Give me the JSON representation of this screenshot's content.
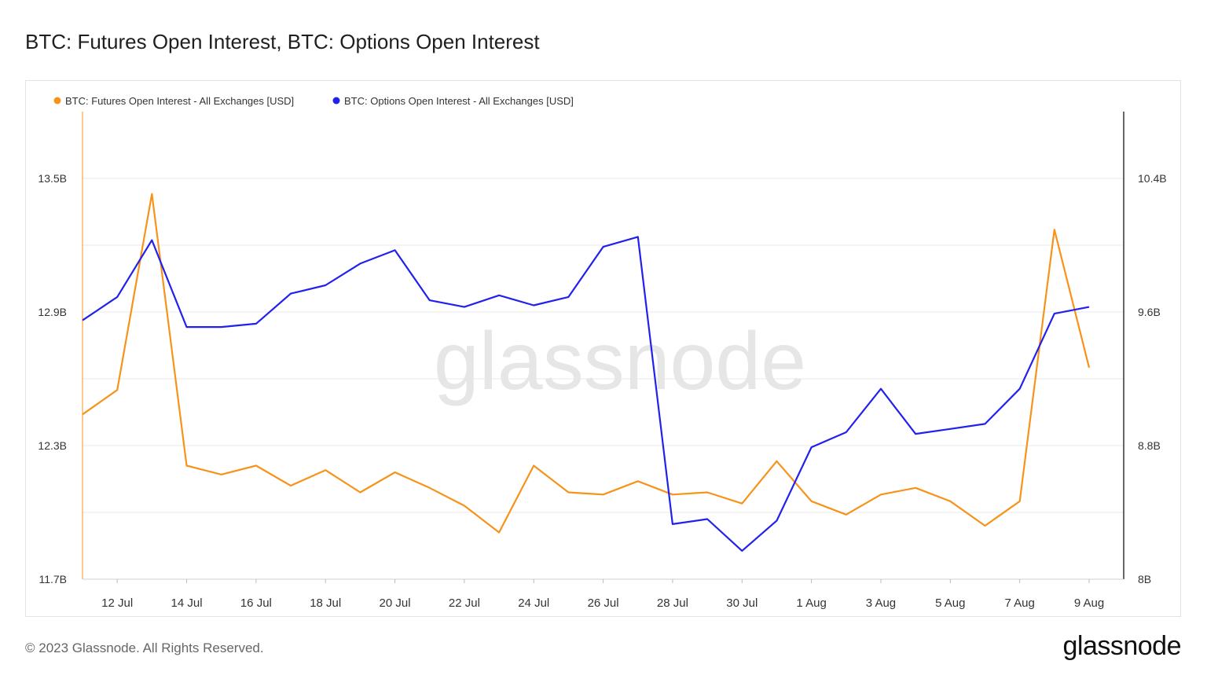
{
  "title": "BTC: Futures Open Interest, BTC: Options Open Interest",
  "footer": "© 2023 Glassnode. All Rights Reserved.",
  "brand": "glassnode",
  "watermark": "glassnode",
  "colors": {
    "futures": "#f7931a",
    "options": "#2121ee",
    "grid": "#e8e8e8",
    "axis_right": "#333333"
  },
  "chart_data": {
    "type": "line",
    "title": "BTC: Futures Open Interest, BTC: Options Open Interest",
    "x_start": "11 Jul",
    "x_end": "9 Aug",
    "x_tick_labels": [
      "12 Jul",
      "14 Jul",
      "16 Jul",
      "18 Jul",
      "20 Jul",
      "22 Jul",
      "24 Jul",
      "26 Jul",
      "28 Jul",
      "30 Jul",
      "1 Aug",
      "3 Aug",
      "5 Aug",
      "7 Aug",
      "9 Aug"
    ],
    "y_left": {
      "ticks": [
        "11.7B",
        "12.3B",
        "12.9B",
        "13.5B"
      ],
      "tick_values": [
        11.7,
        12.3,
        12.9,
        13.5
      ],
      "range": [
        11.7,
        13.8
      ],
      "unit": "B USD"
    },
    "y_right": {
      "ticks": [
        "8B",
        "8.8B",
        "9.6B",
        "10.4B"
      ],
      "tick_values": [
        8.0,
        8.8,
        9.6,
        10.4
      ],
      "range": [
        8.0,
        10.8
      ],
      "unit": "B USD"
    },
    "grid": true,
    "legend_position": "top-left",
    "series": [
      {
        "name": "BTC: Futures Open Interest - All Exchanges [USD]",
        "axis": "left",
        "color": "#f7931a",
        "values": [
          12.44,
          12.55,
          13.43,
          12.21,
          12.17,
          12.21,
          12.12,
          12.19,
          12.09,
          12.18,
          12.11,
          12.03,
          11.91,
          12.21,
          12.09,
          12.08,
          12.14,
          12.08,
          12.09,
          12.04,
          12.23,
          12.05,
          11.99,
          12.08,
          12.11,
          12.05,
          11.94,
          12.05,
          13.27,
          12.65
        ]
      },
      {
        "name": "BTC: Options Open Interest - All Exchanges [USD]",
        "axis": "right",
        "color": "#2121ee",
        "values": [
          9.55,
          9.69,
          10.03,
          9.51,
          9.51,
          9.53,
          9.71,
          9.76,
          9.89,
          9.97,
          9.67,
          9.63,
          9.7,
          9.64,
          9.69,
          9.99,
          10.05,
          8.33,
          8.36,
          8.17,
          8.35,
          8.79,
          8.88,
          9.14,
          8.87,
          8.9,
          8.93,
          9.14,
          9.59,
          9.63
        ]
      }
    ]
  }
}
